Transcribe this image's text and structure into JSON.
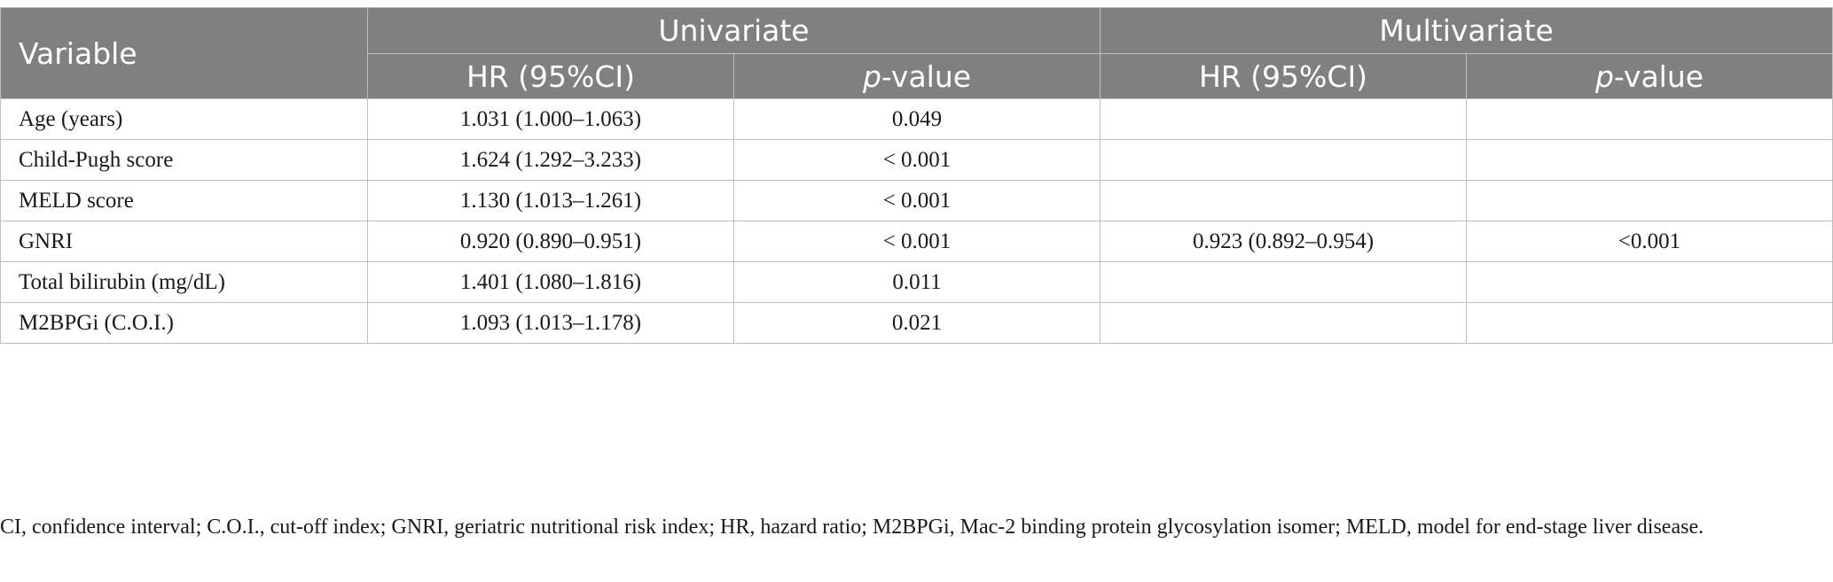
{
  "table": {
    "header": {
      "variable": "Variable",
      "groups": [
        "Univariate",
        "Multivariate"
      ],
      "sub": {
        "hr": "HR (95%CI)",
        "p_italic": "p",
        "p_suffix": "-value"
      }
    },
    "rows": [
      {
        "variable": "Age (years)",
        "uni_hr": "1.031 (1.000–1.063)",
        "uni_p": "0.049",
        "multi_hr": "",
        "multi_p": ""
      },
      {
        "variable": "Child-Pugh score",
        "uni_hr": "1.624 (1.292–3.233)",
        "uni_p": "< 0.001",
        "multi_hr": "",
        "multi_p": ""
      },
      {
        "variable": "MELD score",
        "uni_hr": "1.130 (1.013–1.261)",
        "uni_p": "< 0.001",
        "multi_hr": "",
        "multi_p": ""
      },
      {
        "variable": "GNRI",
        "uni_hr": "0.920 (0.890–0.951)",
        "uni_p": "< 0.001",
        "multi_hr": "0.923 (0.892–0.954)",
        "multi_p": "<0.001"
      },
      {
        "variable": "Total bilirubin (mg/dL)",
        "uni_hr": "1.401 (1.080–1.816)",
        "uni_p": "0.011",
        "multi_hr": "",
        "multi_p": ""
      },
      {
        "variable": "M2BPGi (C.O.I.)",
        "uni_hr": "1.093 (1.013–1.178)",
        "uni_p": "0.021",
        "multi_hr": "",
        "multi_p": ""
      }
    ]
  },
  "footnote": "CI, confidence interval; C.O.I., cut-off index; GNRI, geriatric nutritional risk index; HR, hazard ratio; M2BPGi, Mac-2 binding protein glycosylation isomer; MELD, model for end-stage liver disease.",
  "colors": {
    "header_bg": "#7f807f",
    "header_text": "#ffffff",
    "grid": "#bfbfbf"
  }
}
